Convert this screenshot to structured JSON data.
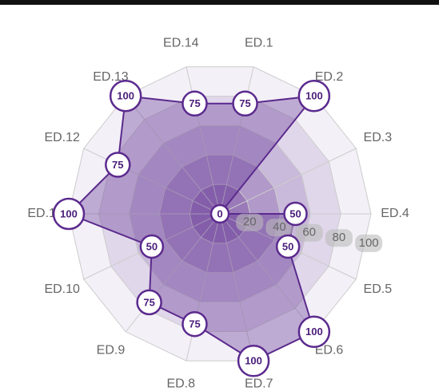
{
  "chart_data": {
    "type": "radar",
    "categories": [
      "ED.1",
      "ED.2",
      "ED.3",
      "ED.4",
      "ED.5",
      "ED.6",
      "ED.7",
      "ED.8",
      "ED.9",
      "ED.10",
      "ED.11",
      "ED.12",
      "ED.13",
      "ED.14"
    ],
    "values": [
      75,
      100,
      0,
      50,
      50,
      100,
      100,
      75,
      75,
      50,
      100,
      75,
      100,
      75
    ],
    "color": "#5b2a8e",
    "rlim": [
      0,
      100
    ],
    "rticks": [
      20,
      40,
      60,
      80,
      100
    ],
    "grid": true
  }
}
